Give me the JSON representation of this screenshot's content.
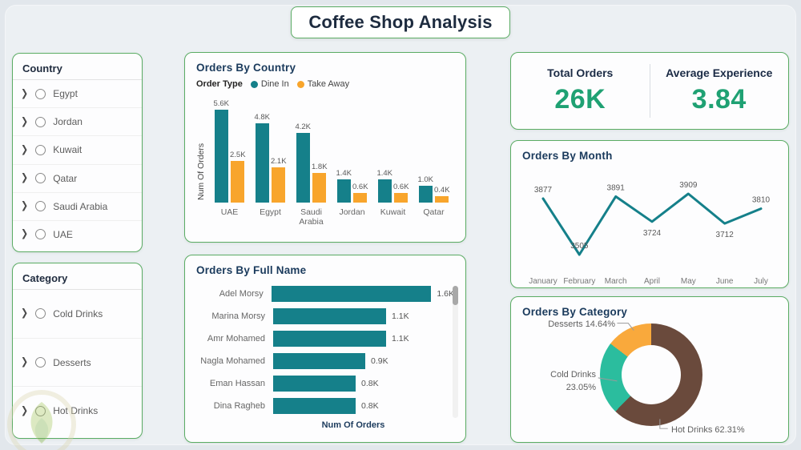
{
  "page": {
    "title": "Coffee Shop Analysis"
  },
  "colors": {
    "accent_border_green": "#5BAC64",
    "kpi_value_green": "#1FA173",
    "title_navy": "#1C3050",
    "dine_in_teal": "#15808A",
    "take_away_orange": "#F8A52C",
    "hot_drinks_brown": "#6A4A3C",
    "cold_drinks_mint": "#2BBD9E",
    "desserts_orange": "#F9A93C"
  },
  "filters": {
    "country": {
      "title": "Country",
      "items": [
        "Egypt",
        "Jordan",
        "Kuwait",
        "Qatar",
        "Saudi Arabia",
        "UAE"
      ]
    },
    "category": {
      "title": "Category",
      "items": [
        "Cold Drinks",
        "Desserts",
        "Hot Drinks"
      ]
    }
  },
  "kpis": {
    "total_orders": {
      "label": "Total Orders",
      "value": "26K"
    },
    "average_experience": {
      "label": "Average Experience",
      "value": "3.84"
    }
  },
  "chart_data": [
    {
      "id": "orders_by_country",
      "type": "bar",
      "title": "Orders By Country",
      "legend_title": "Order Type",
      "legend_position": "top",
      "ylabel": "Num Of Orders",
      "grid": false,
      "categories": [
        "UAE",
        "Egypt",
        "Saudi Arabia",
        "Jordan",
        "Kuwait",
        "Qatar"
      ],
      "series": [
        {
          "name": "Dine In",
          "color": "#15808A",
          "values": [
            5600,
            4800,
            4200,
            1400,
            1400,
            1000
          ],
          "labels": [
            "5.6K",
            "4.8K",
            "4.2K",
            "1.4K",
            "1.4K",
            "1.0K"
          ]
        },
        {
          "name": "Take Away",
          "color": "#F8A52C",
          "values": [
            2500,
            2100,
            1800,
            600,
            600,
            400
          ],
          "labels": [
            "2.5K",
            "2.1K",
            "1.8K",
            "0.6K",
            "0.6K",
            "0.4K"
          ]
        }
      ]
    },
    {
      "id": "orders_by_full_name",
      "type": "bar",
      "orientation": "horizontal",
      "title": "Orders By Full Name",
      "xlabel": "Num Of Orders",
      "grid": false,
      "color": "#15808A",
      "categories": [
        "Adel Morsy",
        "Marina Morsy",
        "Amr Mohamed",
        "Nagla Mohamed",
        "Eman Hassan",
        "Dina Ragheb"
      ],
      "values": [
        1600,
        1100,
        1100,
        900,
        800,
        800
      ],
      "labels": [
        "1.6K",
        "1.1K",
        "1.1K",
        "0.9K",
        "0.8K",
        "0.8K"
      ]
    },
    {
      "id": "orders_by_month",
      "type": "line",
      "title": "Orders By Month",
      "grid": false,
      "color": "#15808A",
      "categories": [
        "January",
        "February",
        "March",
        "April",
        "May",
        "June",
        "July"
      ],
      "values": [
        3877,
        3505,
        3891,
        3724,
        3909,
        3712,
        3810
      ],
      "label_positions": [
        "above",
        "above",
        "above",
        "below",
        "above",
        "below",
        "above"
      ]
    },
    {
      "id": "orders_by_category",
      "type": "pie",
      "title": "Orders By Category",
      "donut": true,
      "slices": [
        {
          "label": "Hot Drinks",
          "pct": 62.31,
          "display": "Hot Drinks 62.31%",
          "color": "#6A4A3C"
        },
        {
          "label": "Cold Drinks",
          "pct": 23.05,
          "line1": "Cold Drinks",
          "line2": "23.05%",
          "color": "#2BBD9E"
        },
        {
          "label": "Desserts",
          "pct": 14.64,
          "display": "Desserts 14.64%",
          "color": "#F9A93C"
        }
      ]
    }
  ]
}
